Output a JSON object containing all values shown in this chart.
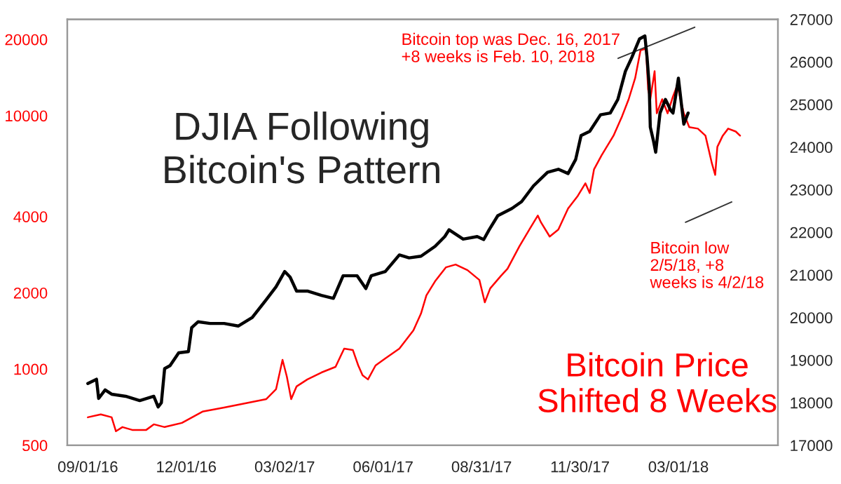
{
  "chart_data": {
    "type": "line",
    "title": "DJIA Following\nBitcoin's Pattern",
    "xlim": [
      "2016-08-13",
      "2018-06-01"
    ],
    "xticks": [
      {
        "value": "2016-09-01",
        "label": "09/01/16"
      },
      {
        "value": "2016-12-01",
        "label": "12/01/16"
      },
      {
        "value": "2017-03-02",
        "label": "03/02/17"
      },
      {
        "value": "2017-06-01",
        "label": "06/01/17"
      },
      {
        "value": "2017-08-31",
        "label": "08/31/17"
      },
      {
        "value": "2017-11-30",
        "label": "11/30/17"
      },
      {
        "value": "2018-03-01",
        "label": "03/01/18"
      }
    ],
    "log": "y",
    "ylim": [
      500,
      24000
    ],
    "yticks": [
      500,
      1000,
      2000,
      4000,
      10000,
      20000
    ],
    "y2lim": [
      17000,
      27000
    ],
    "y2ticks": [
      17000,
      18000,
      19000,
      20000,
      21000,
      22000,
      23000,
      24000,
      25000,
      26000,
      27000
    ],
    "grid": false,
    "legend": false,
    "series": [
      {
        "color": "#000000",
        "axis": "y2",
        "x": [
          "2016-09-01",
          "2016-09-09",
          "2016-09-11",
          "2016-09-17",
          "2016-09-23",
          "2016-10-06",
          "2016-10-19",
          "2016-11-01",
          "2016-11-05",
          "2016-11-08",
          "2016-11-11",
          "2016-11-16",
          "2016-11-24",
          "2016-12-03",
          "2016-12-06",
          "2016-12-12",
          "2016-12-23",
          "2017-01-05",
          "2017-01-18",
          "2017-01-31",
          "2017-02-13",
          "2017-02-22",
          "2017-03-02",
          "2017-03-07",
          "2017-03-13",
          "2017-03-23",
          "2017-04-05",
          "2017-04-16",
          "2017-04-25",
          "2017-05-08",
          "2017-05-16",
          "2017-05-21",
          "2017-06-03",
          "2017-06-16",
          "2017-06-25",
          "2017-07-06",
          "2017-07-19",
          "2017-07-28",
          "2017-08-01",
          "2017-08-14",
          "2017-08-27",
          "2017-09-02",
          "2017-09-07",
          "2017-09-15",
          "2017-09-28",
          "2017-10-07",
          "2017-10-18",
          "2017-10-31",
          "2017-11-10",
          "2017-11-19",
          "2017-11-26",
          "2017-12-01",
          "2017-12-09",
          "2017-12-19",
          "2017-12-28",
          "2018-01-04",
          "2018-01-11",
          "2018-01-17",
          "2018-01-24",
          "2018-01-29",
          "2018-01-31",
          "2018-02-02",
          "2018-02-03",
          "2018-02-06",
          "2018-02-08",
          "2018-02-12",
          "2018-02-17",
          "2018-02-22",
          "2018-02-24",
          "2018-02-27",
          "2018-03-01",
          "2018-03-04",
          "2018-03-06",
          "2018-03-10"
        ],
        "values": [
          18450,
          18550,
          18100,
          18300,
          18200,
          18150,
          18050,
          18150,
          17900,
          18000,
          18800,
          18870,
          19170,
          19200,
          19760,
          19900,
          19860,
          19860,
          19800,
          20000,
          20420,
          20720,
          21080,
          20950,
          20620,
          20620,
          20520,
          20450,
          20980,
          20980,
          20680,
          20980,
          21080,
          21470,
          21400,
          21440,
          21670,
          21900,
          22060,
          21840,
          21900,
          21830,
          22060,
          22390,
          22560,
          22720,
          23090,
          23410,
          23480,
          23380,
          23710,
          24270,
          24370,
          24760,
          24800,
          25120,
          25780,
          26110,
          26540,
          26610,
          26110,
          25450,
          24470,
          24140,
          23880,
          24800,
          25120,
          24860,
          24800,
          25290,
          25620,
          24960,
          24540,
          24800
        ]
      },
      {
        "name": "Bitcoin Price\nShifted 8 Weeks",
        "color": "#ff0000",
        "axis": "y",
        "x": [
          "2016-09-01",
          "2016-09-13",
          "2016-09-23",
          "2016-09-27",
          "2016-10-03",
          "2016-10-12",
          "2016-10-25",
          "2016-11-01",
          "2016-11-11",
          "2016-11-27",
          "2016-12-16",
          "2017-01-05",
          "2017-01-18",
          "2017-02-13",
          "2017-02-22",
          "2017-02-28",
          "2017-03-04",
          "2017-03-08",
          "2017-03-13",
          "2017-03-23",
          "2017-04-05",
          "2017-04-18",
          "2017-04-26",
          "2017-05-04",
          "2017-05-09",
          "2017-05-13",
          "2017-05-18",
          "2017-05-25",
          "2017-06-03",
          "2017-06-16",
          "2017-06-29",
          "2017-07-06",
          "2017-07-11",
          "2017-07-19",
          "2017-07-29",
          "2017-08-07",
          "2017-08-18",
          "2017-08-29",
          "2017-09-03",
          "2017-09-08",
          "2017-09-18",
          "2017-09-24",
          "2017-10-05",
          "2017-10-15",
          "2017-10-22",
          "2017-10-25",
          "2017-11-02",
          "2017-11-10",
          "2017-11-19",
          "2017-11-28",
          "2017-12-05",
          "2017-12-09",
          "2017-12-13",
          "2017-12-20",
          "2017-12-31",
          "2018-01-08",
          "2018-01-14",
          "2018-01-20",
          "2018-01-25",
          "2018-01-30",
          "2018-02-01",
          "2018-02-03",
          "2018-02-07",
          "2018-02-09",
          "2018-02-14",
          "2018-02-19",
          "2018-02-24",
          "2018-02-28",
          "2018-03-06",
          "2018-03-11",
          "2018-03-19",
          "2018-03-26",
          "2018-04-01",
          "2018-04-04",
          "2018-04-06",
          "2018-04-11",
          "2018-04-16",
          "2018-04-23",
          "2018-04-27"
        ],
        "values": [
          645,
          662,
          645,
          568,
          590,
          575,
          575,
          605,
          590,
          613,
          679,
          705,
          723,
          761,
          832,
          1087,
          933,
          761,
          854,
          910,
          969,
          1020,
          1204,
          1189,
          1033,
          945,
          910,
          1033,
          1101,
          1204,
          1420,
          1655,
          1953,
          2219,
          2519,
          2585,
          2456,
          2247,
          1833,
          2081,
          2334,
          2487,
          3050,
          3600,
          4035,
          3788,
          3333,
          3553,
          4300,
          4825,
          5408,
          4948,
          6145,
          6980,
          8340,
          9970,
          11610,
          14060,
          18140,
          18370,
          12690,
          11610,
          14980,
          10220,
          11610,
          10220,
          11910,
          13190,
          10220,
          9010,
          8890,
          8340,
          6470,
          5840,
          7530,
          8340,
          8890,
          8660,
          8340
        ]
      }
    ],
    "annotations": [
      "Bitcoin top was Dec. 16, 2017\n+8 weeks is Feb. 10, 2018",
      "Bitcoin low\n2/5/18, +8\nweeks is 4/2/18"
    ]
  }
}
